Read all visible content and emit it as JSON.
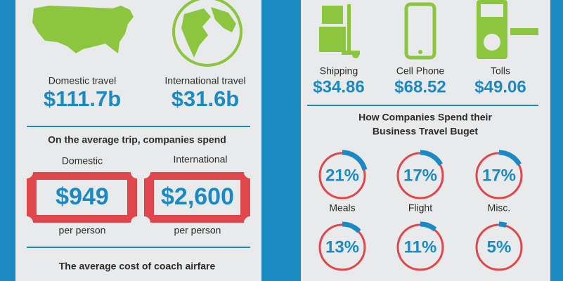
{
  "left": {
    "stats": [
      {
        "label": "Domestic travel",
        "value": "$111.7b"
      },
      {
        "label": "International travel",
        "value": "$31.6b"
      }
    ],
    "trip_heading": "On the average trip, companies spend",
    "trip": [
      {
        "label": "Domestic",
        "value": "$949",
        "note": "per person"
      },
      {
        "label": "International",
        "value": "$2,600",
        "note": "per person"
      }
    ],
    "airfare_heading": "The average cost of coach airfare"
  },
  "right": {
    "costs": [
      {
        "label": "Shipping",
        "value": "$34.86"
      },
      {
        "label": "Cell Phone",
        "value": "$68.52"
      },
      {
        "label": "Tolls",
        "value": "$49.06"
      }
    ],
    "spend_heading_lines": [
      "How Companies Spend their",
      "Business Travel Buget"
    ],
    "spend": [
      {
        "label": "21%",
        "value": 21,
        "category": "Meals"
      },
      {
        "label": "17%",
        "value": 17,
        "category": "Flight"
      },
      {
        "label": "17%",
        "value": 17,
        "category": "Misc."
      },
      {
        "label": "13%",
        "value": 13
      },
      {
        "label": "11%",
        "value": 11
      },
      {
        "label": "5%",
        "value": 5
      }
    ]
  }
}
